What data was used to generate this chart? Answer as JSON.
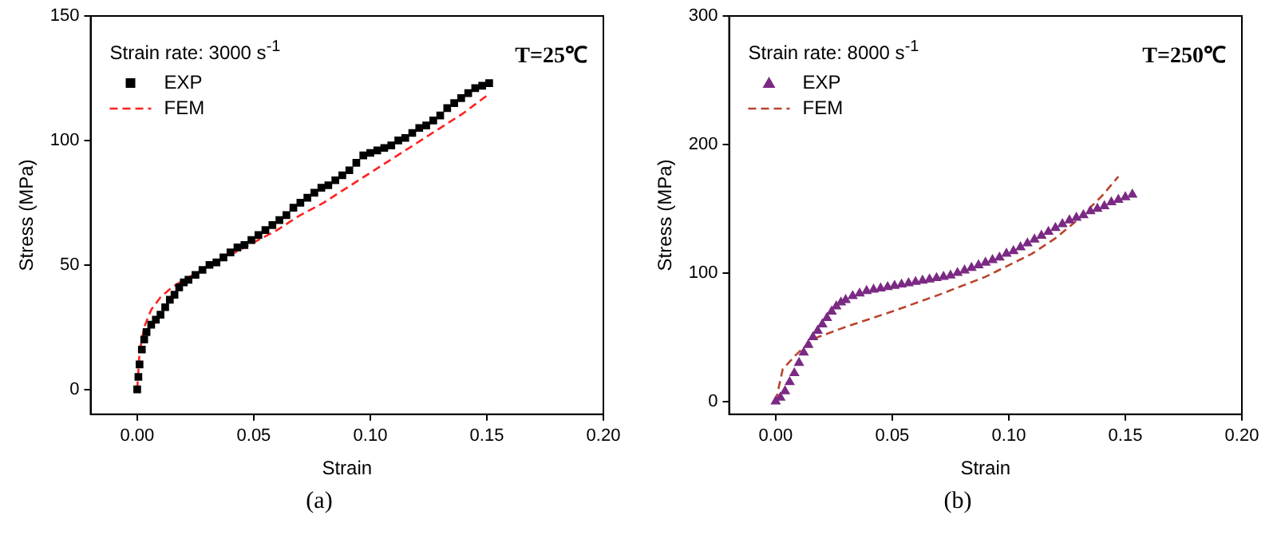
{
  "chart_data": [
    {
      "type": "line",
      "xlabel": "Strain",
      "ylabel": "Stress (MPa)",
      "xlim": [
        -0.02,
        0.2
      ],
      "ylim": [
        -10,
        150
      ],
      "xticks": [
        {
          "value": 0,
          "label": "0.00"
        },
        {
          "value": 0.05,
          "label": "0.05"
        },
        {
          "value": 0.1,
          "label": "0.10"
        },
        {
          "value": 0.15,
          "label": "0.15"
        },
        {
          "value": 0.2,
          "label": "0.20"
        }
      ],
      "yticks": [
        0,
        50,
        100,
        150
      ],
      "grid": false,
      "legend": "top left",
      "annotations": [
        "Strain rate: 3000 s$^{-1}$",
        "T=25℃",
        "(a)"
      ],
      "series": [
        {
          "name": "EXP",
          "type": "scatter",
          "marker": "square",
          "color": "#000000",
          "x": [
            0,
            0.0005,
            0.001,
            0.002,
            0.003,
            0.004,
            0.006,
            0.008,
            0.01,
            0.012,
            0.014,
            0.016,
            0.018,
            0.02,
            0.022,
            0.025,
            0.028,
            0.031,
            0.034,
            0.037,
            0.04,
            0.043,
            0.046,
            0.049,
            0.052,
            0.055,
            0.058,
            0.061,
            0.064,
            0.067,
            0.07,
            0.073,
            0.076,
            0.079,
            0.082,
            0.085,
            0.088,
            0.091,
            0.094,
            0.097,
            0.1,
            0.103,
            0.106,
            0.109,
            0.112,
            0.115,
            0.118,
            0.121,
            0.124,
            0.127,
            0.13,
            0.133,
            0.136,
            0.139,
            0.142,
            0.145,
            0.148,
            0.151
          ],
          "values": [
            0,
            5,
            10,
            16,
            20,
            23,
            26,
            28,
            30,
            33,
            36,
            38,
            41,
            43,
            44,
            46,
            48,
            50,
            51,
            53,
            55,
            57,
            58,
            60,
            62,
            64,
            66,
            68,
            70,
            73,
            75,
            77,
            79,
            81,
            82,
            84,
            86,
            88,
            91,
            94,
            95,
            96,
            97,
            98,
            100,
            101,
            103,
            105,
            106,
            108,
            110,
            113,
            115,
            117,
            119,
            121,
            122,
            123
          ]
        },
        {
          "name": "FEM",
          "type": "line",
          "marker": "none",
          "line_style": "dashed",
          "color": "#ff2020",
          "x": [
            0,
            0.001,
            0.003,
            0.006,
            0.01,
            0.015,
            0.02,
            0.03,
            0.04,
            0.05,
            0.06,
            0.07,
            0.08,
            0.09,
            0.1,
            0.11,
            0.12,
            0.13,
            0.14,
            0.15
          ],
          "values": [
            0,
            15,
            25,
            32,
            37,
            41,
            44,
            49,
            54,
            59,
            64,
            70,
            75,
            81,
            87,
            93,
            99,
            105,
            111,
            118
          ]
        }
      ]
    },
    {
      "type": "line",
      "xlabel": "Strain",
      "ylabel": "Stress (MPa)",
      "xlim": [
        -0.02,
        0.2
      ],
      "ylim": [
        -10,
        300
      ],
      "xticks": [
        {
          "value": 0,
          "label": "0.00"
        },
        {
          "value": 0.05,
          "label": "0.05"
        },
        {
          "value": 0.1,
          "label": "0.10"
        },
        {
          "value": 0.15,
          "label": "0.15"
        },
        {
          "value": 0.2,
          "label": "0.20"
        }
      ],
      "yticks": [
        0,
        100,
        200,
        300
      ],
      "grid": false,
      "legend": "top left",
      "annotations": [
        "Strain rate: 8000 s$^{-1}$",
        "T=250℃",
        "(b)"
      ],
      "series": [
        {
          "name": "EXP",
          "type": "scatter",
          "marker": "triangle",
          "color": "#7b2a84",
          "x": [
            0,
            0.002,
            0.004,
            0.006,
            0.008,
            0.01,
            0.012,
            0.014,
            0.016,
            0.018,
            0.02,
            0.022,
            0.024,
            0.026,
            0.028,
            0.03,
            0.033,
            0.036,
            0.039,
            0.042,
            0.045,
            0.048,
            0.051,
            0.054,
            0.057,
            0.06,
            0.063,
            0.066,
            0.069,
            0.072,
            0.075,
            0.078,
            0.081,
            0.084,
            0.087,
            0.09,
            0.093,
            0.096,
            0.099,
            0.102,
            0.105,
            0.108,
            0.111,
            0.114,
            0.117,
            0.12,
            0.123,
            0.126,
            0.129,
            0.132,
            0.135,
            0.138,
            0.141,
            0.144,
            0.147,
            0.15,
            0.153
          ],
          "values": [
            0,
            3,
            8,
            15,
            22,
            30,
            38,
            44,
            50,
            55,
            60,
            65,
            70,
            74,
            77,
            79,
            82,
            84,
            86,
            87,
            88,
            89,
            90,
            91,
            92,
            93,
            94,
            95,
            96,
            97,
            98,
            100,
            102,
            104,
            106,
            108,
            110,
            112,
            115,
            117,
            120,
            123,
            126,
            129,
            132,
            135,
            138,
            141,
            143,
            145,
            148,
            150,
            152,
            155,
            157,
            159,
            161
          ]
        },
        {
          "name": "FEM",
          "type": "line",
          "marker": "none",
          "line_style": "dashed",
          "color": "#b8442c",
          "x": [
            0,
            0.003,
            0.008,
            0.012,
            0.018,
            0.03,
            0.05,
            0.07,
            0.09,
            0.11,
            0.12,
            0.13,
            0.14,
            0.147
          ],
          "values": [
            0,
            25,
            35,
            42,
            50,
            58,
            70,
            83,
            97,
            115,
            127,
            142,
            160,
            175
          ]
        }
      ]
    }
  ]
}
